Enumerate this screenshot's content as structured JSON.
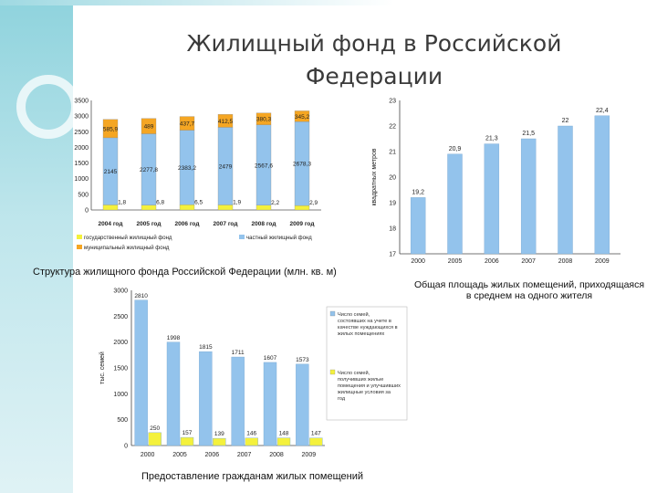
{
  "slide": {
    "title": "Жилищный фонд в Российской Федерации"
  },
  "chart_data": [
    {
      "type": "bar",
      "stacked": true,
      "caption": "Структура жилищного фонда Российской Федерации (млн. кв. м)",
      "categories": [
        "2004 год",
        "2005 год",
        "2006 год",
        "2007 год",
        "2008 год",
        "2009 год"
      ],
      "ylim": [
        0,
        3500
      ],
      "yticks": [
        0,
        500,
        1000,
        1500,
        2000,
        2500,
        3000,
        3500
      ],
      "series": [
        {
          "name": "государственный жилищный фонд",
          "color": "#f4f13c",
          "values": [
            161.8,
            156.8,
            166.5,
            161.9,
            152.2,
            142.9
          ],
          "labels": [
            "161,8",
            "156,8",
            "166,5",
            "161,9",
            "152,2",
            "142,9"
          ]
        },
        {
          "name": "частный жилищный фонд",
          "color": "#93c3ec",
          "values": [
            2145,
            2277.8,
            2383.2,
            2479,
            2567.6,
            2678.3
          ],
          "labels": [
            "2145",
            "2277,8",
            "2383,2",
            "2479",
            "2567,6",
            "2678,3"
          ]
        },
        {
          "name": "муниципальный жилищный фонд",
          "color": "#f5a623",
          "values": [
            585.9,
            489,
            437.7,
            412.5,
            380.3,
            345.2
          ],
          "labels": [
            "585,9",
            "489",
            "437,7",
            "412,5",
            "380,3",
            "345,2"
          ]
        }
      ],
      "grid": false,
      "legend_position": "bottom"
    },
    {
      "type": "bar",
      "caption": "Общая площадь жилых помещений, приходящаяся в среднем на одного жителя",
      "ylabel": "квадратных метров",
      "categories": [
        "2000",
        "2005",
        "2006",
        "2007",
        "2008",
        "2009"
      ],
      "ylim": [
        17,
        23
      ],
      "yticks": [
        17,
        18,
        19,
        20,
        21,
        22,
        23
      ],
      "values": [
        19.2,
        20.9,
        21.3,
        21.5,
        22,
        22.4
      ],
      "labels": [
        "19,2",
        "20,9",
        "21,3",
        "21,5",
        "22",
        "22,4"
      ],
      "color": "#93c3ec",
      "grid": false
    },
    {
      "type": "bar",
      "caption": "Предоставление гражданам жилых помещений",
      "ylabel": "тыс. семей",
      "categories": [
        "2000",
        "2005",
        "2006",
        "2007",
        "2008",
        "2009"
      ],
      "ylim": [
        0,
        3000
      ],
      "yticks": [
        0,
        500,
        1000,
        1500,
        2000,
        2500,
        3000
      ],
      "series": [
        {
          "name": "Число семей, состоявших на учете в качестве нуждающихся в жилых помещениях",
          "color": "#93c3ec",
          "values": [
            2810,
            1998,
            1815,
            1711,
            1607,
            1573
          ],
          "labels": [
            "2810",
            "1998",
            "1815",
            "1711",
            "1607",
            "1573"
          ]
        },
        {
          "name": "Число семей, получивших жилые помещения и улучшивших жилищные условия за год",
          "color": "#f4f13c",
          "values": [
            250,
            157,
            139,
            146,
            148,
            147
          ],
          "labels": [
            "250",
            "157",
            "139",
            "146",
            "148",
            "147"
          ]
        }
      ],
      "grid": false,
      "legend_position": "right"
    }
  ]
}
